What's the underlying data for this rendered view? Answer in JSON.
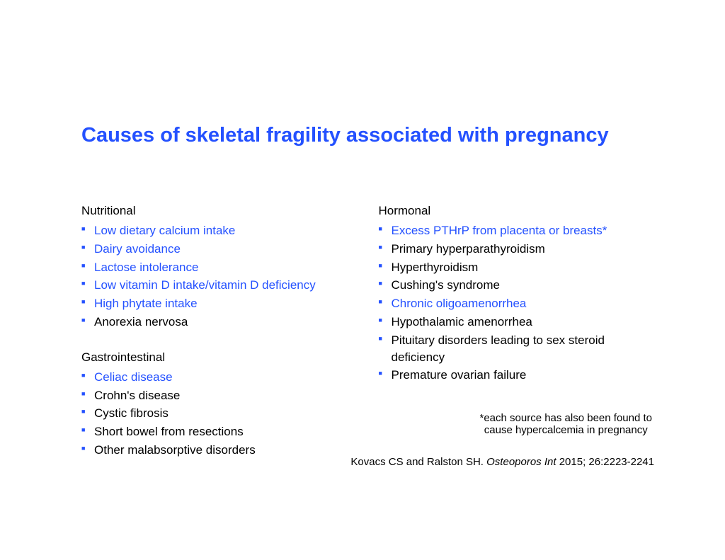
{
  "title": "Causes of skeletal fragility associated with pregnancy",
  "colors": {
    "accent": "#2451ff",
    "text": "#000000",
    "background": "#ffffff"
  },
  "left_column": {
    "sections": [
      {
        "heading": "Nutritional",
        "items": [
          {
            "text": "Low dietary calcium intake",
            "highlighted": true
          },
          {
            "text": "Dairy avoidance",
            "highlighted": true
          },
          {
            "text": "Lactose intolerance",
            "highlighted": true
          },
          {
            "text": "Low vitamin D intake/vitamin D deficiency",
            "highlighted": true
          },
          {
            "text": "High phytate intake",
            "highlighted": true
          },
          {
            "text": "Anorexia nervosa",
            "highlighted": false
          }
        ]
      },
      {
        "heading": "Gastrointestinal",
        "items": [
          {
            "text": "Celiac disease",
            "highlighted": true
          },
          {
            "text": "Crohn's disease",
            "highlighted": false
          },
          {
            "text": "Cystic fibrosis",
            "highlighted": false
          },
          {
            "text": "Short bowel from resections",
            "highlighted": false
          },
          {
            "text": "Other malabsorptive disorders",
            "highlighted": false
          }
        ]
      }
    ]
  },
  "right_column": {
    "sections": [
      {
        "heading": "Hormonal",
        "items": [
          {
            "text": "Excess PTHrP from placenta or breasts*",
            "highlighted": true
          },
          {
            "text": "Primary hyperparathyroidism",
            "highlighted": false
          },
          {
            "text": "Hyperthyroidism",
            "highlighted": false
          },
          {
            "text": "Cushing's syndrome",
            "highlighted": false
          },
          {
            "text": "Chronic oligoamenorrhea",
            "highlighted": true
          },
          {
            "text": "Hypothalamic amenorrhea",
            "highlighted": false
          },
          {
            "text": "Pituitary disorders leading to sex steroid deficiency",
            "highlighted": false
          },
          {
            "text": "Premature ovarian failure",
            "highlighted": false
          }
        ]
      }
    ],
    "footnote": "*each source has also been found to cause hypercalcemia in pregnancy"
  },
  "citation": {
    "authors": "Kovacs CS and Ralston SH.",
    "journal": "Osteoporos Int",
    "year_pages": "2015; 26:2223-2241"
  }
}
